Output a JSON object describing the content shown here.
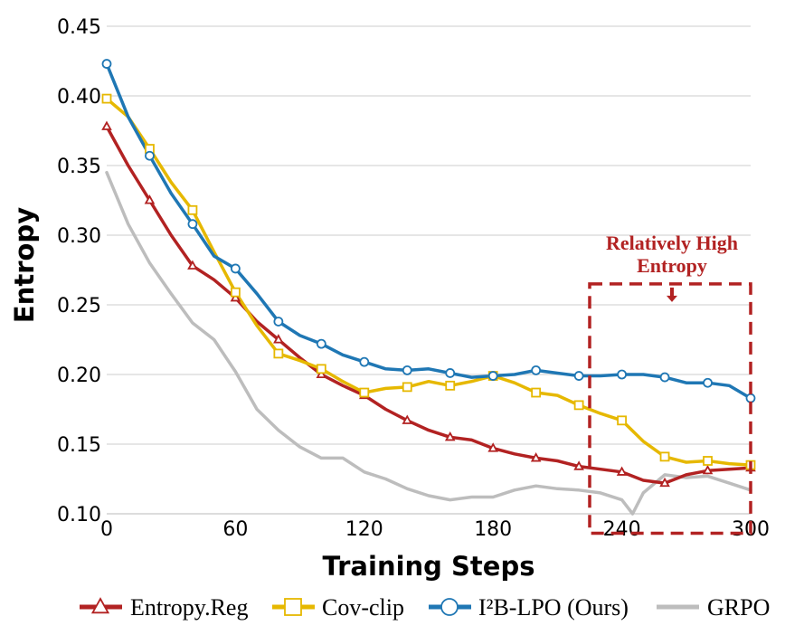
{
  "chart_data": {
    "type": "line",
    "title": "",
    "xlabel": "Training Steps",
    "ylabel": "Entropy",
    "xlim": [
      0,
      300
    ],
    "ylim": [
      0.1,
      0.45
    ],
    "xticks": [
      0,
      60,
      120,
      180,
      240,
      300
    ],
    "yticks": [
      0.1,
      0.15,
      0.2,
      0.25,
      0.3,
      0.35,
      0.4,
      0.45
    ],
    "xtick_labels": [
      "0",
      "60",
      "120",
      "180",
      "240",
      "300"
    ],
    "ytick_labels": [
      "0.10",
      "0.15",
      "0.20",
      "0.25",
      "0.30",
      "0.35",
      "0.40",
      "0.45"
    ],
    "grid": "horizontal",
    "legend_position": "bottom",
    "series": [
      {
        "name": "Entropy.Reg",
        "color": "#b22222",
        "marker": "triangle",
        "x": [
          0,
          10,
          20,
          30,
          40,
          50,
          60,
          70,
          80,
          90,
          100,
          110,
          120,
          130,
          140,
          150,
          160,
          170,
          180,
          190,
          200,
          210,
          220,
          230,
          240,
          250,
          260,
          270,
          280,
          290,
          300
        ],
        "y": [
          0.378,
          0.35,
          0.325,
          0.3,
          0.278,
          0.268,
          0.255,
          0.238,
          0.225,
          0.212,
          0.2,
          0.192,
          0.185,
          0.175,
          0.167,
          0.16,
          0.155,
          0.153,
          0.147,
          0.143,
          0.14,
          0.138,
          0.134,
          0.132,
          0.13,
          0.124,
          0.122,
          0.128,
          0.131,
          0.132,
          0.133
        ],
        "marker_x": [
          0,
          20,
          40,
          60,
          80,
          100,
          120,
          140,
          160,
          180,
          200,
          220,
          240,
          260,
          280,
          300
        ],
        "marker_y": [
          0.378,
          0.325,
          0.278,
          0.255,
          0.225,
          0.2,
          0.185,
          0.167,
          0.155,
          0.147,
          0.14,
          0.134,
          0.13,
          0.122,
          0.131,
          0.133
        ]
      },
      {
        "name": "Cov-clip",
        "color": "#e6b800",
        "marker": "square",
        "x": [
          0,
          10,
          20,
          30,
          40,
          50,
          60,
          70,
          80,
          90,
          100,
          110,
          120,
          130,
          140,
          150,
          160,
          170,
          180,
          190,
          200,
          210,
          220,
          230,
          240,
          250,
          260,
          270,
          280,
          290,
          300
        ],
        "y": [
          0.398,
          0.385,
          0.362,
          0.338,
          0.318,
          0.288,
          0.259,
          0.235,
          0.215,
          0.21,
          0.204,
          0.195,
          0.187,
          0.19,
          0.191,
          0.195,
          0.192,
          0.195,
          0.199,
          0.194,
          0.187,
          0.185,
          0.178,
          0.172,
          0.167,
          0.152,
          0.141,
          0.137,
          0.138,
          0.136,
          0.135
        ],
        "marker_x": [
          0,
          20,
          40,
          60,
          80,
          100,
          120,
          140,
          160,
          180,
          200,
          220,
          240,
          260,
          280,
          300
        ],
        "marker_y": [
          0.398,
          0.362,
          0.318,
          0.259,
          0.215,
          0.204,
          0.187,
          0.191,
          0.192,
          0.199,
          0.187,
          0.178,
          0.167,
          0.141,
          0.138,
          0.135
        ]
      },
      {
        "name": "I²B-LPO (Ours)",
        "color": "#1f77b4",
        "marker": "circle",
        "x": [
          0,
          10,
          20,
          30,
          40,
          50,
          60,
          70,
          80,
          90,
          100,
          110,
          120,
          130,
          140,
          150,
          160,
          170,
          180,
          190,
          200,
          210,
          220,
          230,
          240,
          250,
          260,
          270,
          280,
          290,
          300
        ],
        "y": [
          0.423,
          0.385,
          0.357,
          0.33,
          0.308,
          0.285,
          0.276,
          0.258,
          0.238,
          0.228,
          0.222,
          0.214,
          0.209,
          0.204,
          0.203,
          0.204,
          0.201,
          0.198,
          0.199,
          0.2,
          0.203,
          0.201,
          0.199,
          0.199,
          0.2,
          0.2,
          0.198,
          0.194,
          0.194,
          0.192,
          0.183
        ],
        "marker_x": [
          0,
          20,
          40,
          60,
          80,
          100,
          120,
          140,
          160,
          180,
          200,
          220,
          240,
          260,
          280,
          300
        ],
        "marker_y": [
          0.423,
          0.357,
          0.308,
          0.276,
          0.238,
          0.222,
          0.209,
          0.203,
          0.201,
          0.199,
          0.203,
          0.199,
          0.2,
          0.198,
          0.194,
          0.183
        ]
      },
      {
        "name": "GRPO",
        "color": "#bdbdbd",
        "marker": "none",
        "x": [
          0,
          10,
          20,
          30,
          40,
          50,
          60,
          70,
          80,
          90,
          100,
          110,
          120,
          130,
          140,
          150,
          160,
          170,
          180,
          190,
          200,
          210,
          220,
          230,
          240,
          245,
          250,
          260,
          270,
          280,
          290,
          300
        ],
        "y": [
          0.345,
          0.308,
          0.28,
          0.258,
          0.237,
          0.225,
          0.202,
          0.175,
          0.16,
          0.148,
          0.14,
          0.14,
          0.13,
          0.125,
          0.118,
          0.113,
          0.11,
          0.112,
          0.112,
          0.117,
          0.12,
          0.118,
          0.117,
          0.115,
          0.11,
          0.1,
          0.115,
          0.128,
          0.126,
          0.127,
          0.122,
          0.117
        ],
        "marker_x": [],
        "marker_y": []
      }
    ],
    "annotation": {
      "lines": [
        "Relatively High",
        "Entropy"
      ],
      "color": "#b22222",
      "box_x": [
        225,
        300
      ],
      "box_y": [
        0.086,
        0.265
      ]
    }
  }
}
